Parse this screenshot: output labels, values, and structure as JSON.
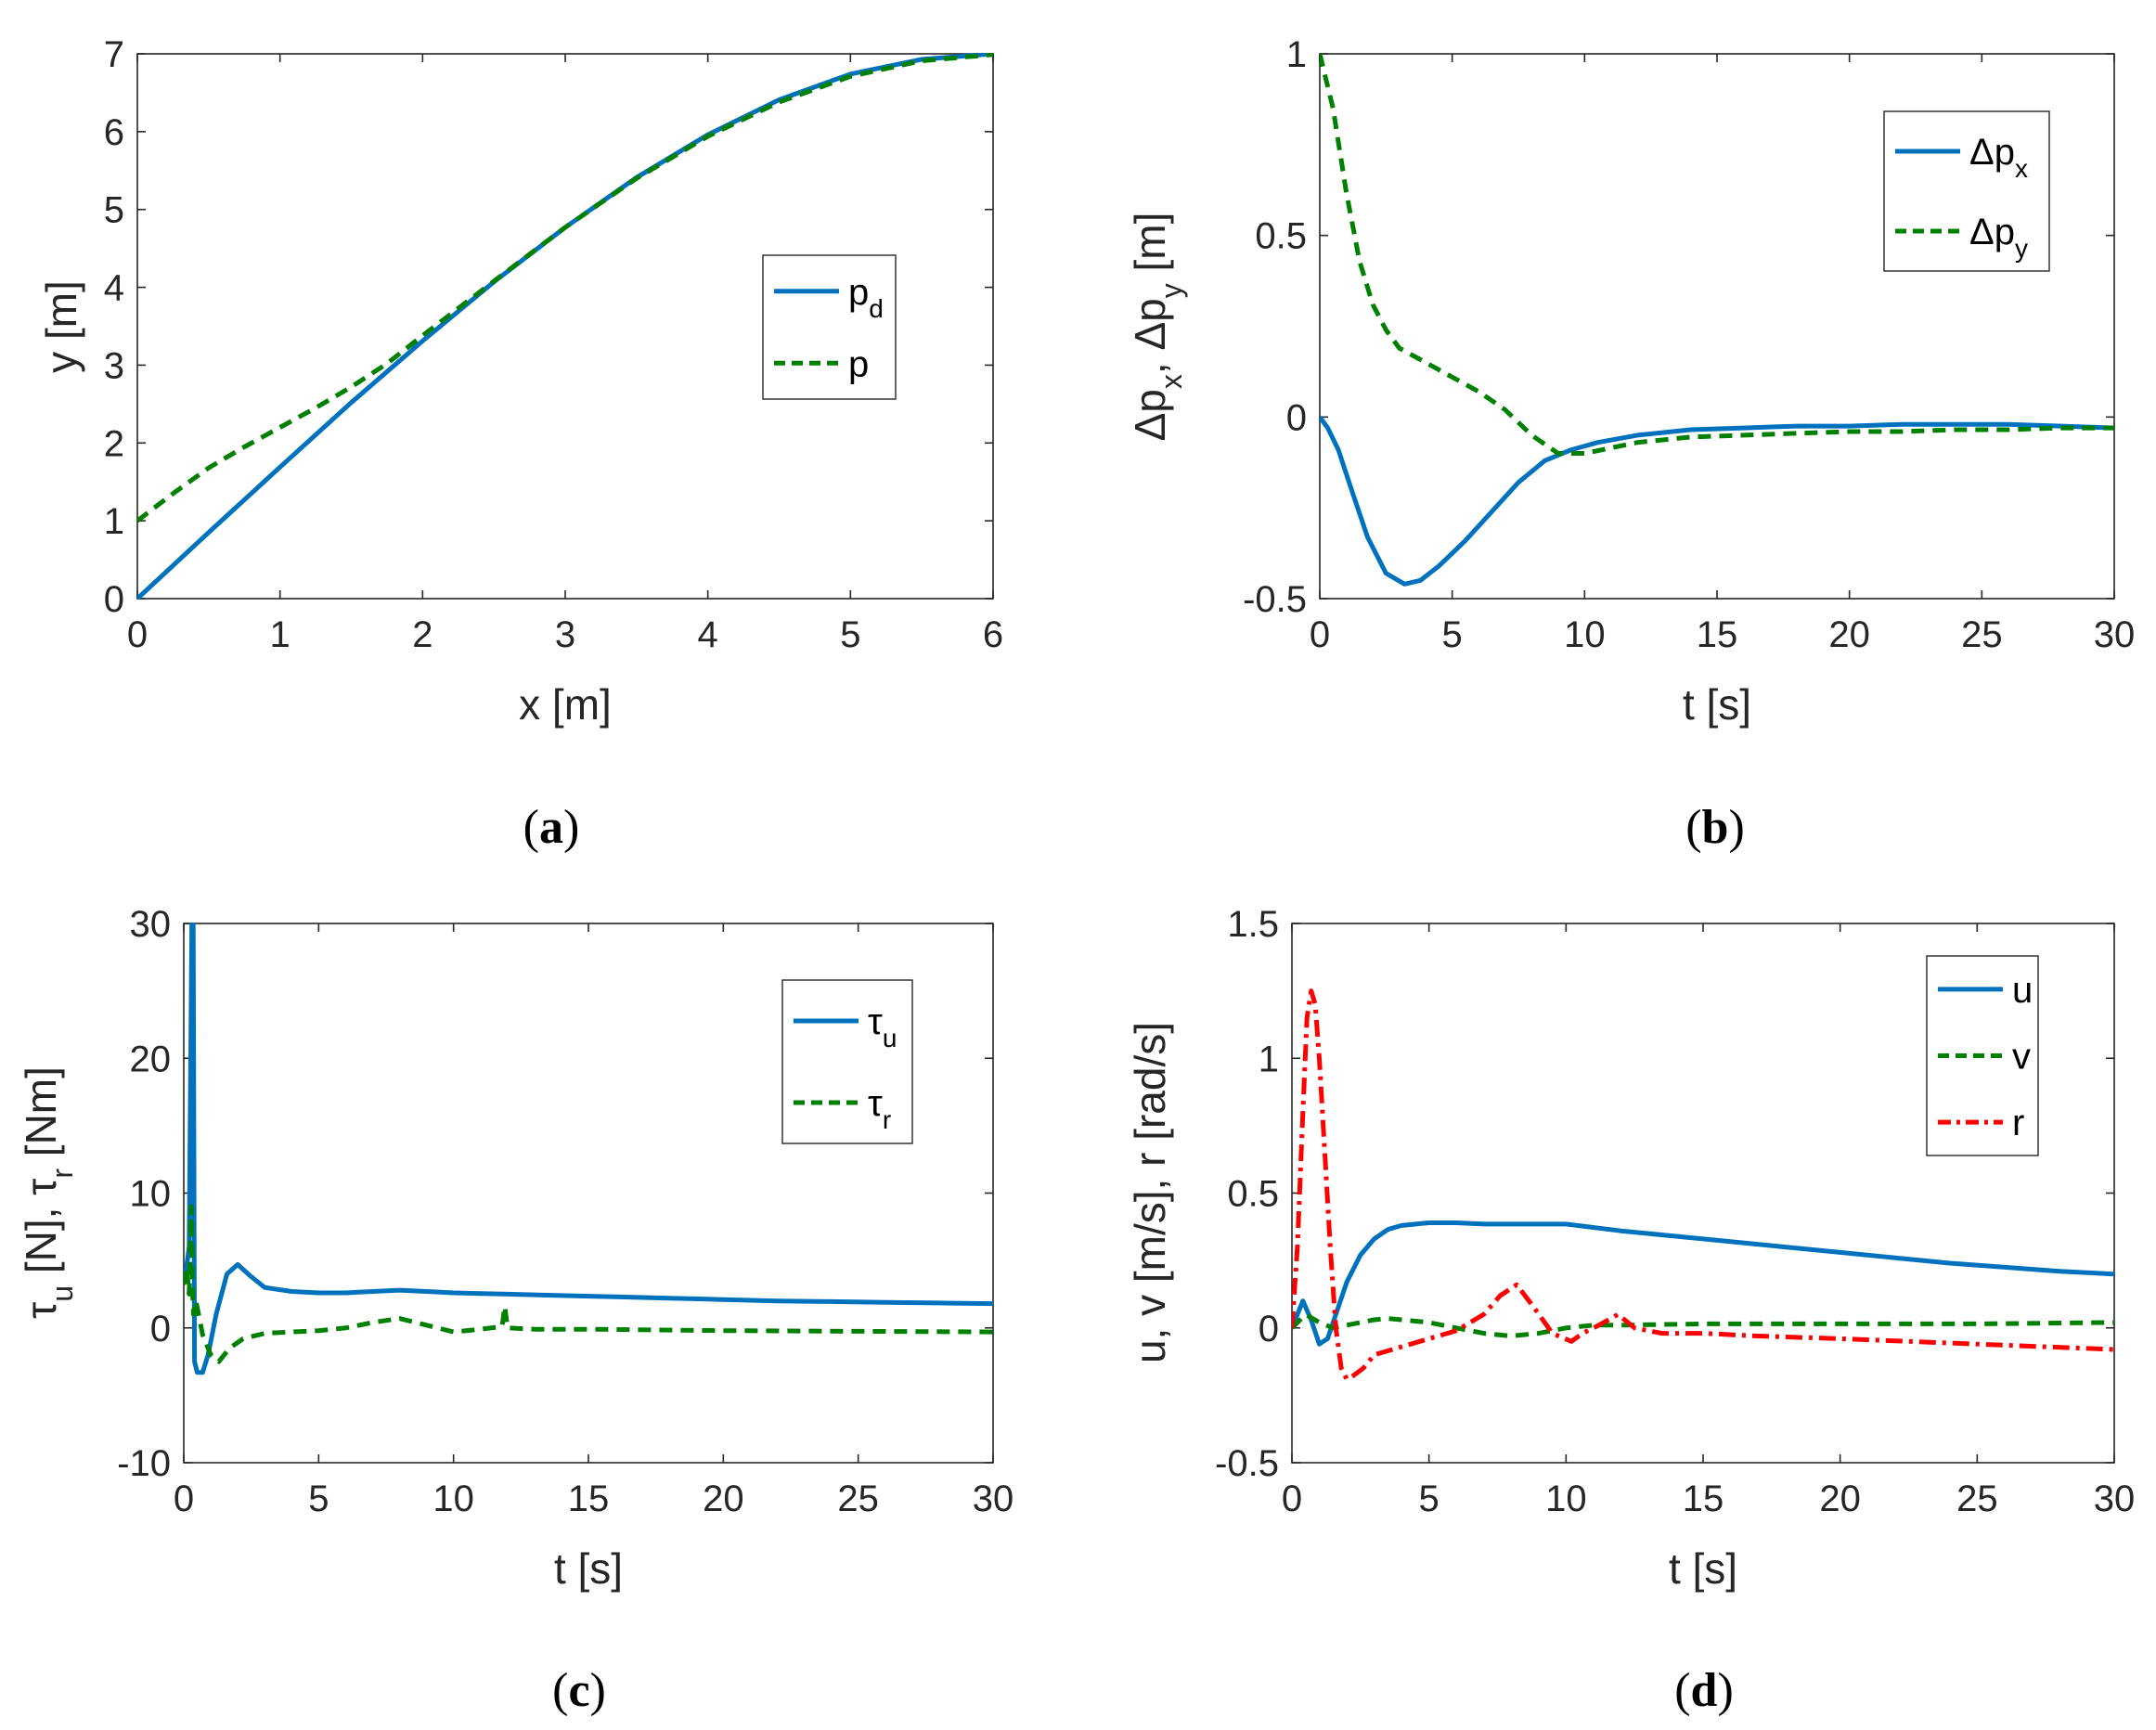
{
  "chart_data": [
    {
      "type": "line",
      "panel_label": "a",
      "xlabel": "x [m]",
      "ylabel": "y [m]",
      "xlim": [
        0,
        6
      ],
      "ylim": [
        0,
        7
      ],
      "xticks": [
        0,
        1,
        2,
        3,
        4,
        5,
        6
      ],
      "yticks": [
        0,
        1,
        2,
        3,
        4,
        5,
        6,
        7
      ],
      "xticklabels": [
        "0",
        "1",
        "2",
        "3",
        "4",
        "5",
        "6"
      ],
      "yticklabels": [
        "0",
        "1",
        "2",
        "3",
        "4",
        "5",
        "6",
        "7"
      ],
      "legend_position": "middle-right",
      "series": [
        {
          "name": "p",
          "sub": "d",
          "color": "#0072BD",
          "style": "solid",
          "x": [
            0,
            0.5,
            1,
            1.5,
            2,
            2.5,
            3,
            3.5,
            4,
            4.5,
            5,
            5.5,
            6
          ],
          "y": [
            0,
            0.85,
            1.69,
            2.52,
            3.31,
            4.07,
            4.77,
            5.41,
            5.96,
            6.41,
            6.74,
            6.93,
            7.0
          ]
        },
        {
          "name": "p",
          "sub": "",
          "color": "#008000",
          "style": "dashed",
          "x": [
            0,
            0.25,
            0.5,
            0.75,
            1,
            1.25,
            1.5,
            1.75,
            2,
            2.5,
            3,
            3.5,
            4,
            4.5,
            5,
            5.5,
            6
          ],
          "y": [
            1.0,
            1.35,
            1.68,
            1.95,
            2.2,
            2.45,
            2.72,
            3.02,
            3.38,
            4.08,
            4.77,
            5.4,
            5.94,
            6.38,
            6.71,
            6.91,
            6.99
          ]
        }
      ]
    },
    {
      "type": "line",
      "panel_label": "b",
      "xlabel": "t [s]",
      "ylabel": "Δp_x, Δp_y [m]",
      "xlim": [
        0,
        30
      ],
      "ylim": [
        -0.5,
        1
      ],
      "xticks": [
        0,
        5,
        10,
        15,
        20,
        25,
        30
      ],
      "yticks": [
        -0.5,
        0,
        0.5,
        1
      ],
      "xticklabels": [
        "0",
        "5",
        "10",
        "15",
        "20",
        "25",
        "30"
      ],
      "yticklabels": [
        "-0.5",
        "0",
        "0.5",
        "1"
      ],
      "legend_position": "top-right",
      "series": [
        {
          "name": "Δp",
          "sub": "x",
          "color": "#0072BD",
          "style": "solid",
          "x": [
            0,
            0.3,
            0.7,
            1.2,
            1.8,
            2.5,
            3.2,
            3.8,
            4.5,
            5.5,
            6.5,
            7.5,
            8.5,
            9.5,
            10.5,
            12,
            14,
            16,
            18,
            20,
            22,
            24,
            26,
            28,
            30
          ],
          "y": [
            0,
            -0.03,
            -0.09,
            -0.2,
            -0.33,
            -0.43,
            -0.46,
            -0.45,
            -0.41,
            -0.34,
            -0.26,
            -0.18,
            -0.12,
            -0.09,
            -0.07,
            -0.05,
            -0.035,
            -0.03,
            -0.025,
            -0.025,
            -0.02,
            -0.02,
            -0.02,
            -0.025,
            -0.03
          ]
        },
        {
          "name": "Δp",
          "sub": "y",
          "color": "#008000",
          "style": "dashed",
          "x": [
            0,
            0.5,
            1,
            1.5,
            2,
            2.5,
            3,
            4,
            5,
            6,
            7,
            8,
            9,
            10,
            12,
            14,
            16,
            18,
            20,
            22,
            24,
            26,
            28,
            30
          ],
          "y": [
            1.0,
            0.85,
            0.62,
            0.43,
            0.31,
            0.24,
            0.19,
            0.15,
            0.11,
            0.07,
            0.02,
            -0.05,
            -0.1,
            -0.1,
            -0.07,
            -0.055,
            -0.05,
            -0.045,
            -0.04,
            -0.04,
            -0.035,
            -0.035,
            -0.03,
            -0.03
          ]
        }
      ]
    },
    {
      "type": "line",
      "panel_label": "c",
      "xlabel": "t [s]",
      "ylabel": "τ_u [N], τ_r [Nm]",
      "xlim": [
        0,
        30
      ],
      "ylim": [
        -10,
        30
      ],
      "xticks": [
        0,
        5,
        10,
        15,
        20,
        25,
        30
      ],
      "yticks": [
        -10,
        0,
        10,
        20,
        30
      ],
      "xticklabels": [
        "0",
        "5",
        "10",
        "15",
        "20",
        "25",
        "30"
      ],
      "yticklabels": [
        "-10",
        "0",
        "10",
        "20",
        "30"
      ],
      "legend_position": "top-right",
      "series": [
        {
          "name": "τ",
          "sub": "u",
          "color": "#0072BD",
          "style": "solid",
          "x": [
            0,
            0.1,
            0.2,
            0.3,
            0.35,
            0.4,
            0.5,
            0.7,
            0.9,
            1.2,
            1.6,
            2.0,
            2.5,
            3,
            4,
            5,
            6,
            7,
            8,
            9,
            10,
            12,
            14,
            16,
            18,
            20,
            22,
            24,
            26,
            28,
            30
          ],
          "y": [
            3.5,
            4.5,
            6.0,
            30.0,
            30.0,
            -2.5,
            -3.3,
            -3.3,
            -2.0,
            1.0,
            4.0,
            4.7,
            3.8,
            3.0,
            2.7,
            2.6,
            2.6,
            2.7,
            2.8,
            2.7,
            2.6,
            2.5,
            2.4,
            2.3,
            2.2,
            2.1,
            2.0,
            1.95,
            1.9,
            1.85,
            1.8
          ]
        },
        {
          "name": "τ",
          "sub": "r",
          "color": "#008000",
          "style": "dashed",
          "x": [
            0,
            0.1,
            0.2,
            0.28,
            0.32,
            0.36,
            0.45,
            0.7,
            1.0,
            1.3,
            1.7,
            2.2,
            3,
            4,
            5,
            6,
            7,
            8,
            9,
            10,
            11,
            11.8,
            11.9,
            12.0,
            13,
            15,
            20,
            25,
            30
          ],
          "y": [
            3.2,
            4.5,
            2.5,
            9.0,
            3.0,
            1.0,
            2.0,
            -0.5,
            -2.0,
            -2.5,
            -1.5,
            -0.8,
            -0.4,
            -0.3,
            -0.2,
            0.0,
            0.4,
            0.7,
            0.2,
            -0.3,
            -0.1,
            0.1,
            1.6,
            0.0,
            -0.1,
            -0.1,
            -0.2,
            -0.25,
            -0.3
          ]
        }
      ]
    },
    {
      "type": "line",
      "panel_label": "d",
      "xlabel": "t [s]",
      "ylabel": "u, v [m/s], r [rad/s]",
      "xlim": [
        0,
        30
      ],
      "ylim": [
        -0.5,
        1.5
      ],
      "xticks": [
        0,
        5,
        10,
        15,
        20,
        25,
        30
      ],
      "yticks": [
        -0.5,
        0,
        0.5,
        1,
        1.5
      ],
      "xticklabels": [
        "0",
        "5",
        "10",
        "15",
        "20",
        "25",
        "30"
      ],
      "yticklabels": [
        "-0.5",
        "0",
        "0.5",
        "1",
        "1.5"
      ],
      "legend_position": "top-right",
      "series": [
        {
          "name": "u",
          "sub": "",
          "color": "#0072BD",
          "style": "solid",
          "x": [
            0,
            0.2,
            0.4,
            0.7,
            1.0,
            1.3,
            1.6,
            2.0,
            2.5,
            3,
            3.5,
            4,
            5,
            6,
            7,
            8,
            10,
            12,
            14,
            16,
            18,
            20,
            22,
            24,
            26,
            28,
            30
          ],
          "y": [
            0,
            0.05,
            0.1,
            0.03,
            -0.06,
            -0.04,
            0.05,
            0.17,
            0.27,
            0.33,
            0.365,
            0.38,
            0.39,
            0.39,
            0.385,
            0.385,
            0.385,
            0.36,
            0.34,
            0.32,
            0.3,
            0.28,
            0.26,
            0.24,
            0.225,
            0.21,
            0.2
          ]
        },
        {
          "name": "v",
          "sub": "",
          "color": "#008000",
          "style": "dashed",
          "x": [
            0,
            0.5,
            1,
            1.5,
            2,
            3,
            3.5,
            4,
            5,
            6,
            7,
            8,
            9,
            10,
            11,
            12,
            15,
            20,
            25,
            30
          ],
          "y": [
            0,
            0.05,
            0.02,
            0.0,
            0.01,
            0.03,
            0.035,
            0.03,
            0.02,
            0.0,
            -0.02,
            -0.03,
            -0.02,
            0.0,
            0.01,
            0.01,
            0.015,
            0.015,
            0.015,
            0.02
          ]
        },
        {
          "name": "r",
          "sub": "",
          "color": "#FF0000",
          "style": "dashdot",
          "x": [
            0,
            0.2,
            0.4,
            0.55,
            0.7,
            0.85,
            1.0,
            1.2,
            1.4,
            1.6,
            1.8,
            2.0,
            2.2,
            2.6,
            3,
            4,
            5,
            6,
            7,
            7.6,
            8.2,
            8.8,
            9.5,
            10.2,
            10.6,
            11.2,
            11.9,
            12.5,
            13.5,
            15,
            17,
            20,
            25,
            30
          ],
          "y": [
            0,
            0.3,
            0.8,
            1.15,
            1.25,
            1.2,
            1.0,
            0.65,
            0.3,
            0.0,
            -0.15,
            -0.19,
            -0.18,
            -0.15,
            -0.1,
            -0.07,
            -0.04,
            -0.01,
            0.05,
            0.12,
            0.16,
            0.08,
            -0.02,
            -0.05,
            -0.02,
            0.01,
            0.05,
            0.0,
            -0.02,
            -0.02,
            -0.03,
            -0.04,
            -0.06,
            -0.08
          ]
        }
      ]
    }
  ],
  "captions": [
    "(a)",
    "(b)",
    "(c)",
    "(d)"
  ],
  "caption_parts": [
    {
      "open": "(",
      "letter": "a",
      "close": ")"
    },
    {
      "open": "(",
      "letter": "b",
      "close": ")"
    },
    {
      "open": "(",
      "letter": "c",
      "close": ")"
    },
    {
      "open": "(",
      "letter": "d",
      "close": ")"
    }
  ]
}
